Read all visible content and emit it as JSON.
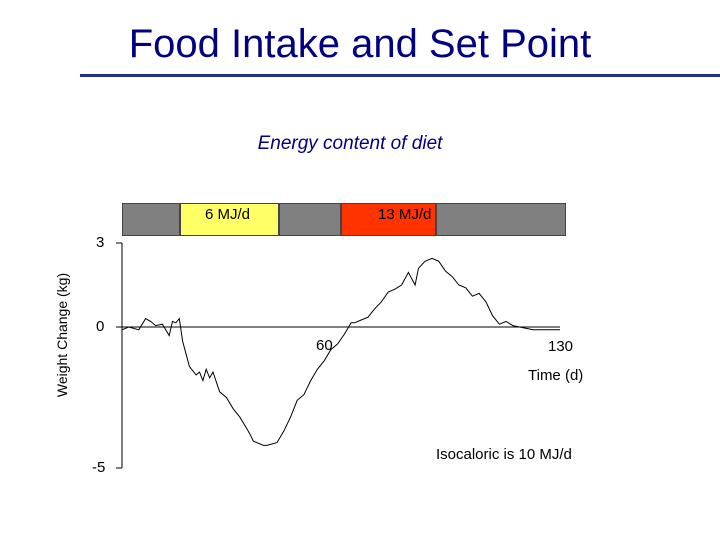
{
  "page_title": "Food Intake and Set Point",
  "accent_color": "#1f2f8a",
  "chart_data": {
    "type": "line",
    "title": "Energy content of diet",
    "xlabel": "Time (d)",
    "ylabel": "Weight Change (kg)",
    "yticks": [
      "3",
      "0",
      "-5"
    ],
    "xticks": [
      "60",
      "130"
    ],
    "xlim": [
      0,
      130
    ],
    "ylim": [
      -5,
      3
    ],
    "annotation": "Isocaloric is 10 MJ/d",
    "diet_bar": [
      {
        "label": "",
        "color": "#808080",
        "start": 0,
        "end": 17
      },
      {
        "label": "6 MJ/d",
        "color": "#ffff66",
        "start": 17,
        "end": 46
      },
      {
        "label": "",
        "color": "#808080",
        "start": 46,
        "end": 64
      },
      {
        "label": "13 MJ/d",
        "color": "#ff3300",
        "start": 64,
        "end": 92
      },
      {
        "label": "",
        "color": "#808080",
        "start": 92,
        "end": 130
      }
    ],
    "series": [
      {
        "name": "weight",
        "x": [
          0,
          2,
          5,
          7,
          8.5,
          10,
          12,
          14,
          15,
          16,
          17,
          18,
          20,
          22,
          23,
          24,
          25,
          26,
          27,
          29,
          31,
          33,
          35,
          37,
          38,
          39,
          40,
          41,
          42,
          43,
          46,
          48,
          50,
          52,
          54,
          56,
          58,
          60,
          62,
          64,
          66,
          68,
          69,
          71,
          73,
          75,
          77,
          79,
          81,
          83,
          85,
          87,
          88,
          90,
          92,
          94,
          96,
          98,
          100,
          102,
          104,
          106,
          108,
          110,
          112,
          114,
          116,
          118,
          120,
          122,
          124,
          126,
          128,
          130
        ],
        "y": [
          -0.1,
          0,
          -0.1,
          0.3,
          0.2,
          0.05,
          0.1,
          -0.3,
          0.2,
          0.15,
          0.3,
          -0.5,
          -1.4,
          -1.7,
          -1.6,
          -1.9,
          -1.5,
          -1.8,
          -1.6,
          -2.3,
          -2.5,
          -2.9,
          -3.2,
          -3.6,
          -3.8,
          -4.05,
          -4.1,
          -4.15,
          -4.2,
          -4.2,
          -4.1,
          -3.7,
          -3.2,
          -2.6,
          -2.4,
          -1.9,
          -1.5,
          -1.2,
          -0.8,
          -0.6,
          -0.25,
          0.15,
          0.15,
          0.25,
          0.35,
          0.65,
          0.9,
          1.25,
          1.35,
          1.5,
          1.95,
          1.5,
          2.1,
          2.35,
          2.45,
          2.35,
          2.0,
          1.8,
          1.5,
          1.4,
          1.1,
          1.2,
          0.9,
          0.4,
          0.1,
          0.2,
          0.05,
          0.0,
          -0.05,
          -0.1,
          -0.1,
          -0.1,
          -0.1,
          -0.1
        ]
      }
    ]
  }
}
